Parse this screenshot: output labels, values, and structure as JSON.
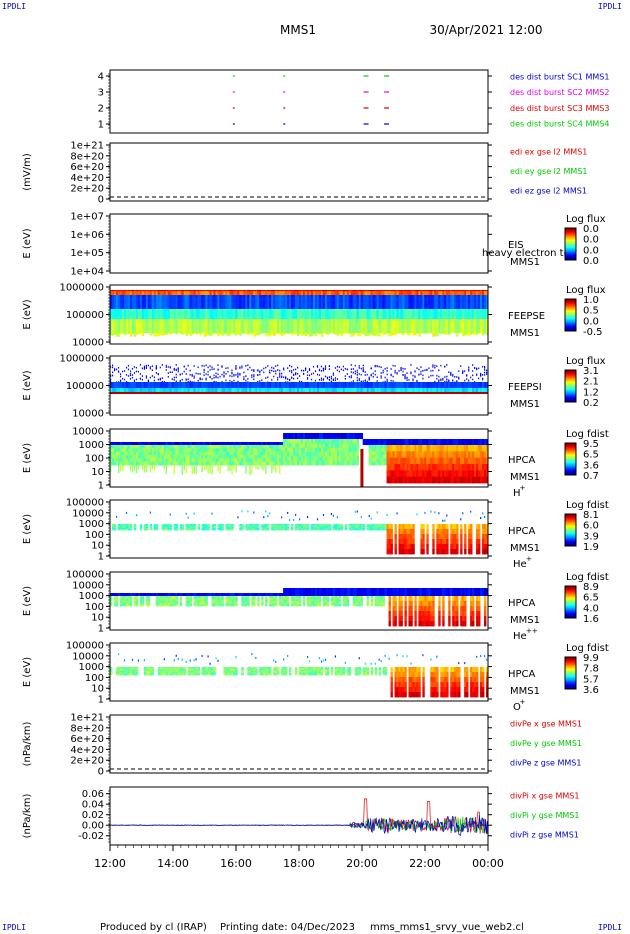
{
  "header": {
    "mission": "MMS1",
    "datetime": "30/Apr/2021 12:00",
    "corner_label": "IPDLI"
  },
  "footer": {
    "produced_by": "Produced by cl (IRAP)",
    "printing_date": "Printing date: 04/Dec/2023",
    "script_name": "mms_mms1_srvy_vue_web2.cl"
  },
  "colors": {
    "red": "#dd0000",
    "green": "#00cc00",
    "blue": "#0000cc",
    "magenta": "#dd00dd",
    "axis": "#000000"
  },
  "chart_data": {
    "type": "area",
    "time_axis": {
      "range": [
        "12:00",
        "00:00"
      ],
      "tick_labels": [
        "12:00",
        "14:00",
        "16:00",
        "18:00",
        "20:00",
        "22:00",
        "00:00"
      ]
    },
    "panels": [
      {
        "kind": "burst",
        "ylim": [
          0.5,
          4.5
        ],
        "ytick_labels": [
          "4",
          "3",
          "2",
          "1"
        ],
        "legend": [
          {
            "text": "des dist burst SC1 MMS1",
            "color": "#0000cc"
          },
          {
            "text": "des dist burst SC2 MMS2",
            "color": "#dd00dd"
          },
          {
            "text": "des dist burst SC3 MMS3",
            "color": "#dd0000"
          },
          {
            "text": "des dist burst SC4 MMS4",
            "color": "#00cc00"
          }
        ],
        "burst_times_h": [
          15.9,
          17.5,
          20.05,
          20.7
        ]
      },
      {
        "kind": "line",
        "ylabel": "(mV/m)",
        "ylim": [
          0,
          1e+21
        ],
        "ytick_labels": [
          "1e+21",
          "8e+20",
          "6e+20",
          "4e+20",
          "2e+20",
          "0"
        ],
        "legend": [
          {
            "text": "edi ex gse l2 MMS1",
            "color": "#dd0000"
          },
          {
            "text": "edi ey gse l2 MMS1",
            "color": "#00cc00"
          },
          {
            "text": "edi ez gse l2 MMS1",
            "color": "#0000cc"
          }
        ]
      },
      {
        "kind": "empty_spectrogram",
        "ylabel": "E (eV)",
        "ytick_labels": [
          "1e+07",
          "1e+06",
          "1e+05",
          "1e+04"
        ],
        "instrument": "EIS",
        "spacecraft": "MMS1",
        "overlay_text": "heavy electron to",
        "colorbar": {
          "title": "Log flux",
          "labels": [
            "0.0",
            "0.0",
            "0.0",
            "0.0"
          ]
        }
      },
      {
        "kind": "spectrogram",
        "ylabel": "E (eV)",
        "ytick_labels": [
          "1000000",
          "100000",
          "10000"
        ],
        "instrument": "FEEPSE",
        "spacecraft": "MMS1",
        "colorbar": {
          "title": "Log flux",
          "labels": [
            "1.0",
            "0.5",
            "0.0",
            "-0.5"
          ]
        }
      },
      {
        "kind": "spectrogram",
        "ylabel": "E (eV)",
        "ytick_labels": [
          "1000000",
          "100000",
          "10000"
        ],
        "instrument": "FEEPSI",
        "spacecraft": "MMS1",
        "colorbar": {
          "title": "Log flux",
          "labels": [
            "3.1",
            "2.1",
            "1.2",
            "0.2"
          ]
        }
      },
      {
        "kind": "spectrogram",
        "ylabel": "E (eV)",
        "ytick_labels": [
          "10000",
          "1000",
          "100",
          "10",
          "1"
        ],
        "instrument": "HPCA",
        "spacecraft": "MMS1",
        "species": "H",
        "species_charge": "+",
        "colorbar": {
          "title": "Log fdist",
          "labels": [
            "9.5",
            "6.5",
            "3.6",
            "0.7"
          ]
        }
      },
      {
        "kind": "spectrogram",
        "ylabel": "E (eV)",
        "ytick_labels": [
          "100000",
          "10000",
          "1000",
          "100",
          "10",
          "1"
        ],
        "instrument": "HPCA",
        "spacecraft": "MMS1",
        "species": "He",
        "species_charge": "+",
        "colorbar": {
          "title": "Log fdist",
          "labels": [
            "8.1",
            "6.0",
            "3.9",
            "1.9"
          ]
        }
      },
      {
        "kind": "spectrogram",
        "ylabel": "E (eV)",
        "ytick_labels": [
          "100000",
          "10000",
          "1000",
          "100",
          "10",
          "1"
        ],
        "instrument": "HPCA",
        "spacecraft": "MMS1",
        "species": "He",
        "species_charge": "++",
        "colorbar": {
          "title": "Log fdist",
          "labels": [
            "8.9",
            "6.5",
            "4.0",
            "1.6"
          ]
        }
      },
      {
        "kind": "spectrogram",
        "ylabel": "E (eV)",
        "ytick_labels": [
          "100000",
          "10000",
          "1000",
          "100",
          "10",
          "1"
        ],
        "instrument": "HPCA",
        "spacecraft": "MMS1",
        "species": "O",
        "species_charge": "+",
        "colorbar": {
          "title": "Log fdist",
          "labels": [
            "9.9",
            "7.8",
            "5.7",
            "3.6"
          ]
        }
      },
      {
        "kind": "line",
        "ylabel": "(nPa/km)",
        "ylim": [
          0,
          1e+21
        ],
        "ytick_labels": [
          "1e+21",
          "8e+20",
          "6e+20",
          "4e+20",
          "2e+20",
          "0"
        ],
        "legend": [
          {
            "text": "divPe x gse MMS1",
            "color": "#dd0000"
          },
          {
            "text": "divPe y gse MMS1",
            "color": "#00cc00"
          },
          {
            "text": "divPe z gse MMS1",
            "color": "#0000cc"
          }
        ]
      },
      {
        "kind": "line",
        "ylabel": "(nPa/km)",
        "ylim": [
          -0.03,
          0.065
        ],
        "ytick_labels": [
          "0.06",
          "0.04",
          "0.02",
          "0.00",
          "-0.02"
        ],
        "ytick_values": [
          0.06,
          0.04,
          0.02,
          0.0,
          -0.02
        ],
        "legend": [
          {
            "text": "divPi x gse MMS1",
            "color": "#dd0000"
          },
          {
            "text": "divPi y gse MMS1",
            "color": "#00cc00"
          },
          {
            "text": "divPi z gse MMS1",
            "color": "#0000cc"
          }
        ]
      }
    ]
  }
}
